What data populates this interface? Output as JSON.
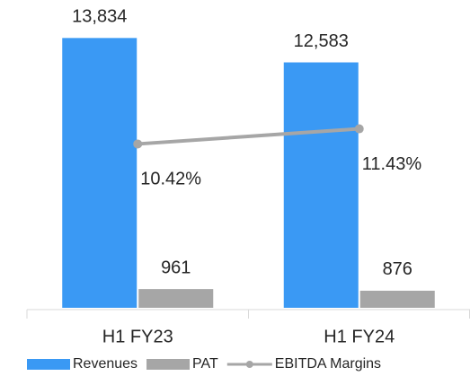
{
  "chart_data": {
    "type": "bar",
    "categories": [
      "H1 FY23",
      "H1 FY24"
    ],
    "series": [
      {
        "name": "Revenues",
        "color": "#3a99f4",
        "values": [
          13834,
          12583
        ],
        "value_labels": [
          "13,834",
          "12,583"
        ]
      },
      {
        "name": "PAT",
        "color": "#a6a6a6",
        "values": [
          961,
          876
        ]
      },
      {
        "name": "EBITDA Margins",
        "color": "#a6a6a6",
        "type": "line",
        "axis": "y2",
        "values": [
          10.42,
          11.43
        ],
        "value_labels": [
          "10.42%",
          "11.43%"
        ]
      }
    ],
    "ylim": [
      0,
      15000
    ],
    "y2lim": [
      -0.5,
      19
    ],
    "legend": "bottom"
  }
}
